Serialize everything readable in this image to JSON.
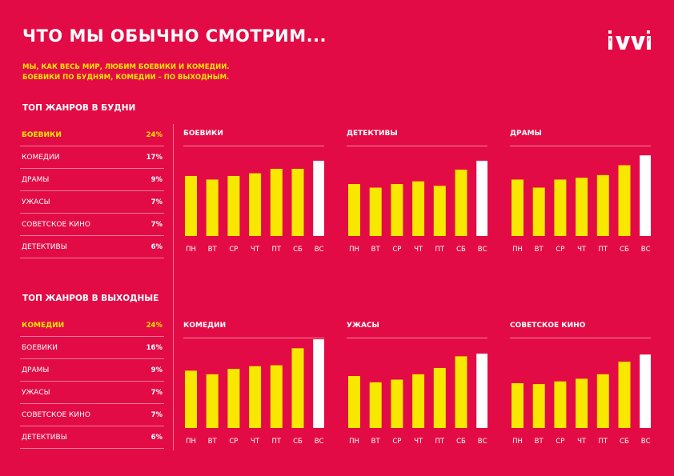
{
  "header": {
    "title": "ЧТО МЫ ОБЫЧНО СМОТРИМ...",
    "subtitle_line1": "МЫ, КАК ВЕСЬ МИР, ЛЮБИМ БОЕВИКИ И КОМЕДИИ.",
    "subtitle_line2": "БОЕВИКИ ПО БУДНЯМ, КОМЕДИИ – ПО ВЫХОДНЫМ.",
    "logo": "ivi"
  },
  "colors": {
    "background": "#e30b45",
    "bar": "#f8e800",
    "bar_highlight": "#ffffff",
    "accent_text": "#f8e800"
  },
  "weekdays": {
    "section_title": "ТОП ЖАНРОВ В БУДНИ",
    "items": [
      {
        "label": "БОЕВИКИ",
        "value": "24%"
      },
      {
        "label": "КОМЕДИИ",
        "value": "17%"
      },
      {
        "label": "ДРАМЫ",
        "value": "9%"
      },
      {
        "label": "УЖАСЫ",
        "value": "7%"
      },
      {
        "label": "СОВЕТСКОЕ КИНО",
        "value": "7%"
      },
      {
        "label": "ДЕТЕКТИВЫ",
        "value": "6%"
      }
    ]
  },
  "weekends": {
    "section_title": "ТОП ЖАНРОВ В ВЫХОДНЫЕ",
    "items": [
      {
        "label": "КОМЕДИИ",
        "value": "24%"
      },
      {
        "label": "БОЕВИКИ",
        "value": "16%"
      },
      {
        "label": "ДРАМЫ",
        "value": "9%"
      },
      {
        "label": "УЖАСЫ",
        "value": "7%"
      },
      {
        "label": "СОВЕТСКОЕ КИНО",
        "value": "7%"
      },
      {
        "label": "ДЕТЕКТИВЫ",
        "value": "6%"
      }
    ]
  },
  "chart_data": [
    {
      "type": "bar",
      "title": "БОЕВИКИ",
      "categories": [
        "ПН",
        "ВТ",
        "СР",
        "ЧТ",
        "ПТ",
        "СБ",
        "ВС"
      ],
      "values": [
        67,
        63,
        67,
        70,
        75,
        75,
        84
      ],
      "highlight_index": 6,
      "ylim": [
        0,
        100
      ],
      "grid": false
    },
    {
      "type": "bar",
      "title": "ДЕТЕКТИВЫ",
      "categories": [
        "ПН",
        "ВТ",
        "СР",
        "ЧТ",
        "ПТ",
        "СБ",
        "ВС"
      ],
      "values": [
        58,
        54,
        58,
        61,
        56,
        74,
        84
      ],
      "highlight_index": 6,
      "ylim": [
        0,
        100
      ],
      "grid": false
    },
    {
      "type": "bar",
      "title": "ДРАМЫ",
      "categories": [
        "ПН",
        "ВТ",
        "СР",
        "ЧТ",
        "ПТ",
        "СБ",
        "ВС"
      ],
      "values": [
        63,
        54,
        63,
        65,
        68,
        79,
        90
      ],
      "highlight_index": 6,
      "ylim": [
        0,
        100
      ],
      "grid": false
    },
    {
      "type": "bar",
      "title": "КОМЕДИИ",
      "categories": [
        "ПН",
        "ВТ",
        "СР",
        "ЧТ",
        "ПТ",
        "СБ",
        "ВС"
      ],
      "values": [
        64,
        60,
        66,
        69,
        70,
        89,
        99
      ],
      "highlight_index": 6,
      "ylim": [
        0,
        100
      ],
      "grid": false
    },
    {
      "type": "bar",
      "title": "УЖАСЫ",
      "categories": [
        "ПН",
        "ВТ",
        "СР",
        "ЧТ",
        "ПТ",
        "СБ",
        "ВС"
      ],
      "values": [
        58,
        51,
        54,
        60,
        67,
        80,
        83
      ],
      "highlight_index": 6,
      "ylim": [
        0,
        100
      ],
      "grid": false
    },
    {
      "type": "bar",
      "title": "СОВЕТСКОЕ КИНО",
      "categories": [
        "ПН",
        "ВТ",
        "СР",
        "ЧТ",
        "ПТ",
        "СБ",
        "ВС"
      ],
      "values": [
        50,
        49,
        52,
        55,
        60,
        74,
        82
      ],
      "highlight_index": 6,
      "ylim": [
        0,
        100
      ],
      "grid": false
    }
  ]
}
